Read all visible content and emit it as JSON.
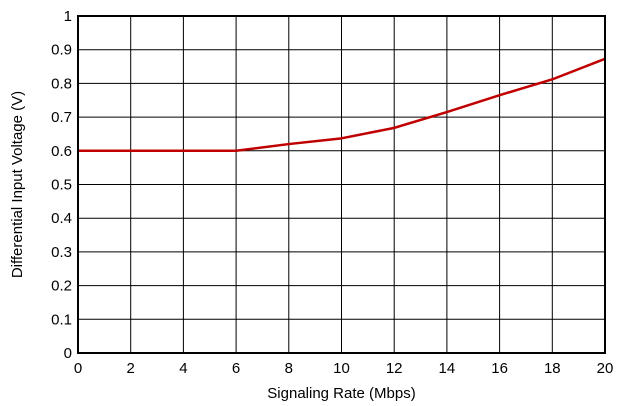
{
  "chart_data": {
    "type": "line",
    "xlabel": "Signaling Rate (Mbps)",
    "ylabel": "Differential Input Voltage (V)",
    "xlim": [
      0,
      20
    ],
    "ylim": [
      0,
      1
    ],
    "xticks": [
      0,
      2,
      4,
      6,
      8,
      10,
      12,
      14,
      16,
      18,
      20
    ],
    "yticks": [
      0,
      0.1,
      0.2,
      0.3,
      0.4,
      0.5,
      0.6,
      0.7,
      0.8,
      0.9,
      1
    ],
    "xtick_labels": [
      "0",
      "2",
      "4",
      "6",
      "8",
      "10",
      "12",
      "14",
      "16",
      "18",
      "20"
    ],
    "ytick_labels": [
      "0",
      "0.1",
      "0.2",
      "0.3",
      "0.4",
      "0.5",
      "0.6",
      "0.7",
      "0.8",
      "0.9",
      "1"
    ],
    "grid": true,
    "legend": "none",
    "series": [
      {
        "color": "#c00000",
        "x": [
          0,
          2,
          4,
          6,
          8,
          10,
          12,
          14,
          16,
          18,
          20
        ],
        "y": [
          0.6,
          0.6,
          0.6,
          0.6,
          0.62,
          0.637,
          0.668,
          0.715,
          0.765,
          0.812,
          0.873
        ]
      }
    ]
  }
}
